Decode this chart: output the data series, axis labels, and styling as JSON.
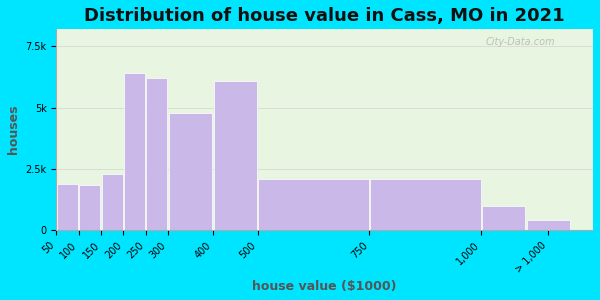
{
  "title": "Distribution of house value in Cass, MO in 2021",
  "xlabel": "house value ($1000)",
  "ylabel": "houses",
  "bar_lefts": [
    50,
    100,
    150,
    200,
    250,
    300,
    400,
    500,
    750,
    1000,
    1100
  ],
  "bar_widths": [
    50,
    50,
    50,
    50,
    50,
    100,
    100,
    250,
    250,
    100,
    100
  ],
  "bar_values": [
    1900,
    1850,
    2300,
    6400,
    6200,
    4800,
    6100,
    2100,
    2100,
    1000,
    400
  ],
  "bar_color": "#c9b8e8",
  "bar_edge_color": "#ffffff",
  "background_outer": "#00e5ff",
  "background_plot_top": "#e8f5e0",
  "background_plot_bottom": "#e0f5f0",
  "yticks": [
    0,
    2500,
    5000,
    7500
  ],
  "ytick_labels": [
    "0",
    "2.5k",
    "5k",
    "7.5k"
  ],
  "ylim": [
    0,
    8200
  ],
  "xlim": [
    50,
    1250
  ],
  "xtick_positions": [
    50,
    100,
    150,
    200,
    250,
    300,
    400,
    500,
    750,
    1000,
    1150
  ],
  "xtick_labels": [
    "50",
    "100",
    "150",
    "200",
    "250",
    "300",
    "400",
    "500",
    "750",
    "1,000",
    "> 1,000"
  ],
  "title_fontsize": 13,
  "axis_label_fontsize": 9,
  "tick_fontsize": 7,
  "watermark": "City-Data.com"
}
